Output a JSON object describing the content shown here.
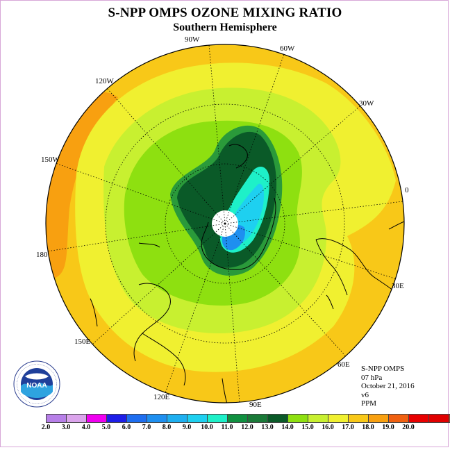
{
  "title": "S-NPP OMPS OZONE MIXING RATIO",
  "subtitle": "Southern Hemisphere",
  "longitude_labels": [
    "90W",
    "60W",
    "30W",
    "0",
    "30E",
    "60E",
    "90E",
    "120E",
    "150E",
    "180",
    "150W",
    "120W"
  ],
  "info": {
    "instrument": "S-NPP OMPS",
    "level": "07 hPa",
    "date": "October 21, 2016",
    "version": "v6",
    "unit": "PPM"
  },
  "logo": {
    "text": "NOAA",
    "ring_text": "NATIONAL OCEANIC AND ATMOSPHERIC ADMINISTRATION U.S. DEPARTMENT OF COMMERCE"
  },
  "colorbar": {
    "labels": [
      "2.0",
      "3.0",
      "4.0",
      "5.0",
      "6.0",
      "7.0",
      "8.0",
      "9.0",
      "10.0",
      "11.0",
      "12.0",
      "13.0",
      "14.0",
      "15.0",
      "16.0",
      "17.0",
      "18.0",
      "19.0",
      "20.0"
    ],
    "colors": [
      "#b77fe8",
      "#dba4ec",
      "#f000f0",
      "#1e1ee8",
      "#1e6ef0",
      "#1e8ff0",
      "#1eaff0",
      "#1ed0f0",
      "#1ef0c8",
      "#109040",
      "#1a7a38",
      "#0a5a28",
      "#8ee010",
      "#c8f030",
      "#f0f030",
      "#f8c818",
      "#f8a010",
      "#f06010",
      "#e80000",
      "#e00000",
      "#8b5a3a"
    ]
  }
}
